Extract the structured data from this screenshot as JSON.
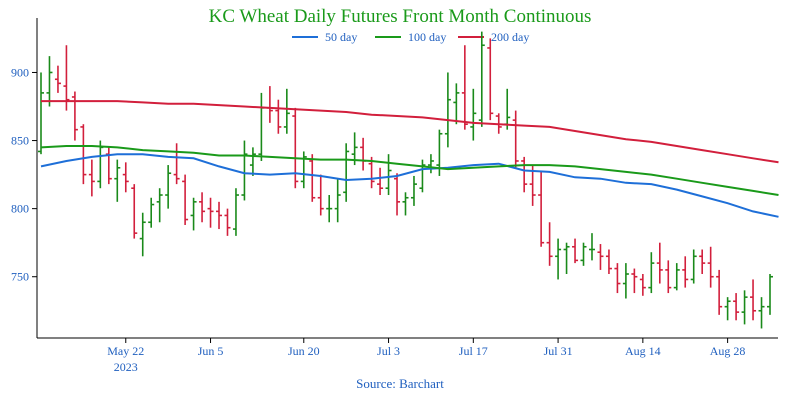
{
  "chart_data": {
    "type": "ohlc",
    "title": "KC Wheat Daily Futures Front Month Continuous",
    "source": "Source: Barchart",
    "ylim": [
      705,
      940
    ],
    "yticks": [
      750,
      800,
      850,
      900
    ],
    "up_color": "#1a8a1a",
    "down_color": "#d21f3c",
    "xticks": [
      {
        "index": 10,
        "label": "May 22",
        "sublabel": "2023"
      },
      {
        "index": 20,
        "label": "Jun 5",
        "sublabel": ""
      },
      {
        "index": 31,
        "label": "Jun 20",
        "sublabel": ""
      },
      {
        "index": 41,
        "label": "Jul 3",
        "sublabel": ""
      },
      {
        "index": 51,
        "label": "Jul 17",
        "sublabel": ""
      },
      {
        "index": 61,
        "label": "Jul 31",
        "sublabel": ""
      },
      {
        "index": 71,
        "label": "Aug 14",
        "sublabel": ""
      },
      {
        "index": 81,
        "label": "Aug 28",
        "sublabel": ""
      }
    ],
    "ohlc": [
      [
        842,
        900,
        840,
        885
      ],
      [
        885,
        912,
        875,
        900
      ],
      [
        895,
        905,
        885,
        892
      ],
      [
        890,
        920,
        872,
        880
      ],
      [
        882,
        886,
        850,
        858
      ],
      [
        860,
        862,
        818,
        825
      ],
      [
        825,
        836,
        809,
        820
      ],
      [
        820,
        850,
        815,
        845
      ],
      [
        840,
        845,
        818,
        822
      ],
      [
        822,
        836,
        805,
        830
      ],
      [
        825,
        834,
        812,
        820
      ],
      [
        815,
        818,
        778,
        782
      ],
      [
        778,
        797,
        765,
        790
      ],
      [
        790,
        808,
        786,
        803
      ],
      [
        805,
        815,
        790,
        810
      ],
      [
        810,
        832,
        800,
        826
      ],
      [
        825,
        848,
        818,
        822
      ],
      [
        820,
        825,
        788,
        792
      ],
      [
        795,
        808,
        784,
        805
      ],
      [
        805,
        812,
        790,
        798
      ],
      [
        800,
        808,
        786,
        798
      ],
      [
        798,
        805,
        785,
        795
      ],
      [
        795,
        800,
        780,
        786
      ],
      [
        785,
        815,
        780,
        810
      ],
      [
        810,
        850,
        806,
        840
      ],
      [
        832,
        845,
        824,
        840
      ],
      [
        840,
        885,
        835,
        874
      ],
      [
        874,
        890,
        863,
        872
      ],
      [
        872,
        880,
        855,
        860
      ],
      [
        860,
        888,
        855,
        870
      ],
      [
        868,
        874,
        815,
        820
      ],
      [
        820,
        842,
        815,
        838
      ],
      [
        835,
        840,
        805,
        808
      ],
      [
        808,
        825,
        795,
        800
      ],
      [
        800,
        810,
        790,
        800
      ],
      [
        800,
        822,
        790,
        810
      ],
      [
        812,
        848,
        805,
        842
      ],
      [
        840,
        856,
        832,
        845
      ],
      [
        845,
        852,
        828,
        835
      ],
      [
        833,
        838,
        815,
        820
      ],
      [
        818,
        830,
        810,
        815
      ],
      [
        815,
        840,
        810,
        828
      ],
      [
        822,
        826,
        795,
        805
      ],
      [
        805,
        812,
        795,
        808
      ],
      [
        808,
        824,
        802,
        818
      ],
      [
        815,
        836,
        812,
        832
      ],
      [
        832,
        840,
        826,
        835
      ],
      [
        832,
        858,
        824,
        855
      ],
      [
        855,
        900,
        845,
        880
      ],
      [
        878,
        892,
        862,
        885
      ],
      [
        885,
        920,
        858,
        862
      ],
      [
        860,
        888,
        850,
        870
      ],
      [
        865,
        930,
        860,
        920
      ],
      [
        918,
        925,
        865,
        870
      ],
      [
        868,
        870,
        855,
        860
      ],
      [
        862,
        888,
        858,
        867
      ],
      [
        865,
        872,
        830,
        835
      ],
      [
        835,
        838,
        812,
        818
      ],
      [
        818,
        832,
        802,
        810
      ],
      [
        810,
        828,
        772,
        775
      ],
      [
        775,
        790,
        758,
        765
      ],
      [
        765,
        778,
        748,
        770
      ],
      [
        770,
        775,
        752,
        772
      ],
      [
        772,
        778,
        760,
        762
      ],
      [
        762,
        775,
        758,
        772
      ],
      [
        770,
        782,
        762,
        770
      ],
      [
        768,
        774,
        755,
        765
      ],
      [
        765,
        770,
        752,
        756
      ],
      [
        756,
        760,
        738,
        745
      ],
      [
        745,
        760,
        734,
        752
      ],
      [
        752,
        756,
        738,
        750
      ],
      [
        748,
        752,
        736,
        742
      ],
      [
        742,
        768,
        738,
        760
      ],
      [
        760,
        775,
        745,
        755
      ],
      [
        755,
        762,
        738,
        742
      ],
      [
        742,
        760,
        740,
        755
      ],
      [
        755,
        765,
        742,
        748
      ],
      [
        748,
        770,
        745,
        765
      ],
      [
        765,
        770,
        752,
        760
      ],
      [
        760,
        772,
        742,
        750
      ],
      [
        750,
        755,
        722,
        728
      ],
      [
        728,
        735,
        718,
        732
      ],
      [
        732,
        738,
        718,
        724
      ],
      [
        724,
        740,
        715,
        735
      ],
      [
        735,
        748,
        718,
        725
      ],
      [
        725,
        735,
        712,
        728
      ],
      [
        728,
        752,
        722,
        750
      ]
    ],
    "series": [
      {
        "name": "50 day",
        "color": "#1e6fd8",
        "x": [
          0,
          3,
          6,
          9,
          12,
          15,
          18,
          21,
          24,
          27,
          30,
          33,
          36,
          39,
          42,
          45,
          48,
          51,
          54,
          57,
          60,
          63,
          66,
          69,
          72,
          75,
          78,
          81,
          84,
          87
        ],
        "y": [
          831,
          835,
          838,
          840,
          840,
          838,
          837,
          831,
          826,
          825,
          826,
          824,
          821,
          822,
          824,
          829,
          830,
          832,
          833,
          828,
          827,
          823,
          822,
          819,
          818,
          814,
          809,
          804,
          798,
          794
        ]
      },
      {
        "name": "100 day",
        "color": "#1a9a1a",
        "x": [
          0,
          3,
          6,
          9,
          12,
          15,
          18,
          21,
          24,
          27,
          30,
          33,
          36,
          39,
          42,
          45,
          48,
          51,
          54,
          57,
          60,
          63,
          66,
          69,
          72,
          75,
          78,
          81,
          84,
          87
        ],
        "y": [
          845,
          846,
          846,
          845,
          843,
          842,
          841,
          839,
          839,
          838,
          837,
          836,
          836,
          835,
          833,
          831,
          829,
          830,
          831,
          832,
          832,
          831,
          829,
          827,
          825,
          822,
          819,
          816,
          813,
          810
        ]
      },
      {
        "name": "200 day",
        "color": "#d21f3c",
        "x": [
          0,
          3,
          6,
          9,
          12,
          15,
          18,
          21,
          24,
          27,
          30,
          33,
          36,
          39,
          42,
          45,
          48,
          51,
          54,
          57,
          60,
          63,
          66,
          69,
          72,
          75,
          78,
          81,
          84,
          87
        ],
        "y": [
          879,
          879,
          879,
          879,
          878,
          877,
          877,
          876,
          875,
          874,
          873,
          872,
          871,
          869,
          868,
          867,
          865,
          863,
          862,
          861,
          860,
          857,
          854,
          851,
          849,
          846,
          843,
          840,
          837,
          834
        ]
      }
    ]
  }
}
